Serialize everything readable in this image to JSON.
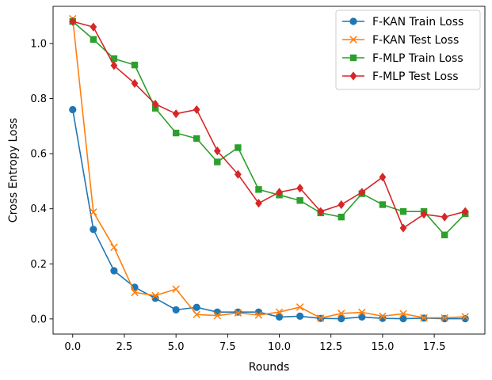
{
  "chart_data": {
    "type": "line",
    "title": "",
    "xlabel": "Rounds",
    "ylabel": "Cross Entropy Loss",
    "xlim": [
      -0.95,
      19.95
    ],
    "ylim": [
      -0.055,
      1.135
    ],
    "xticks": [
      {
        "value": 0,
        "label": "0.0"
      },
      {
        "value": 2.5,
        "label": "2.5"
      },
      {
        "value": 5,
        "label": "5.0"
      },
      {
        "value": 7.5,
        "label": "7.5"
      },
      {
        "value": 10,
        "label": "10.0"
      },
      {
        "value": 12.5,
        "label": "12.5"
      },
      {
        "value": 15,
        "label": "15.0"
      },
      {
        "value": 17.5,
        "label": "17.5"
      }
    ],
    "yticks": [
      {
        "value": 0,
        "label": "0.0"
      },
      {
        "value": 0.2,
        "label": "0.2"
      },
      {
        "value": 0.4,
        "label": "0.4"
      },
      {
        "value": 0.6,
        "label": "0.6"
      },
      {
        "value": 0.8,
        "label": "0.8"
      },
      {
        "value": 1.0,
        "label": "1.0"
      }
    ],
    "grid": false,
    "legend_position": "top-right",
    "x": [
      0,
      1,
      2,
      3,
      4,
      5,
      6,
      7,
      8,
      9,
      10,
      11,
      12,
      13,
      14,
      15,
      16,
      17,
      18,
      19
    ],
    "series": [
      {
        "name": "F-KAN Train Loss",
        "color": "#1f77b4",
        "marker": "circle",
        "values": [
          0.76,
          0.325,
          0.175,
          0.115,
          0.075,
          0.033,
          0.042,
          0.025,
          0.025,
          0.025,
          0.007,
          0.01,
          0.002,
          0.001,
          0.007,
          0.002,
          0.001,
          0.003,
          0.001,
          0.001
        ]
      },
      {
        "name": "F-KAN Test Loss",
        "color": "#ff7f0e",
        "marker": "x",
        "values": [
          1.09,
          0.388,
          0.26,
          0.096,
          0.085,
          0.108,
          0.016,
          0.012,
          0.022,
          0.014,
          0.025,
          0.043,
          0.003,
          0.02,
          0.024,
          0.01,
          0.019,
          0.004,
          0.004,
          0.008
        ]
      },
      {
        "name": "F-MLP Train Loss",
        "color": "#2ca02c",
        "marker": "square",
        "values": [
          1.08,
          1.015,
          0.945,
          0.922,
          0.765,
          0.675,
          0.655,
          0.57,
          0.622,
          0.47,
          0.45,
          0.43,
          0.385,
          0.37,
          0.455,
          0.415,
          0.39,
          0.39,
          0.305,
          0.382
        ]
      },
      {
        "name": "F-MLP Test Loss",
        "color": "#d62728",
        "marker": "diamond",
        "values": [
          1.08,
          1.06,
          0.92,
          0.855,
          0.78,
          0.745,
          0.76,
          0.61,
          0.525,
          0.42,
          0.46,
          0.475,
          0.39,
          0.415,
          0.46,
          0.515,
          0.33,
          0.38,
          0.37,
          0.39
        ]
      }
    ]
  }
}
